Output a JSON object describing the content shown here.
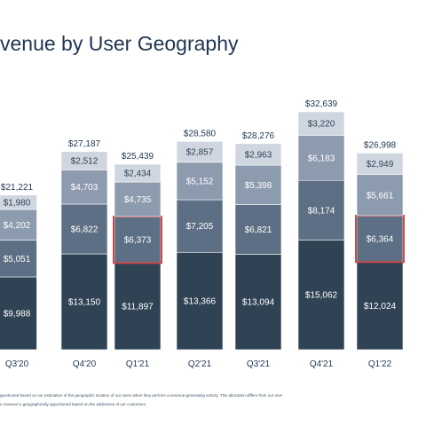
{
  "page": {
    "title": "venue by User Geography",
    "footnotes": [
      "pportioned based on our estimation of the geographic location of our users when they perform a revenue-generating activity. This allocation differs from our reve",
      "e revenue is geographically apportioned based on the addresses of our customers."
    ]
  },
  "colors": {
    "segment_1": "#2f4354",
    "segment_2": "#5d6f84",
    "segment_3": "#8d9bae",
    "segment_4": "#cfd6e0",
    "highlight": "#c94a4a",
    "total_label": "#1f3552",
    "axis_label": "#1f3552"
  },
  "chart_data": {
    "type": "bar",
    "stacked": true,
    "categories": [
      "Q3'20",
      "Q4'20",
      "Q1'21",
      "Q2'21",
      "Q3'21",
      "Q4'21",
      "Q1'22"
    ],
    "series": [
      {
        "values": [
          9988,
          13150,
          11897,
          13366,
          13094,
          15062,
          12024
        ],
        "labels": [
          "$9,988",
          "$13,150",
          "$11,897",
          "$13,366",
          "$13,094",
          "$15,062",
          "$12,024"
        ]
      },
      {
        "values": [
          5051,
          6822,
          6373,
          7205,
          6821,
          8174,
          6364
        ],
        "labels": [
          "$5,051",
          "$6,822",
          "$6,373",
          "$7,205",
          "$6,821",
          "$8,174",
          "$6,364"
        ]
      },
      {
        "values": [
          4202,
          4703,
          4735,
          5152,
          5398,
          6183,
          5661
        ],
        "labels": [
          "$4,202",
          "$4,703",
          "$4,735",
          "$5,152",
          "$5,398",
          "$6,183",
          "$5,661"
        ]
      },
      {
        "values": [
          1980,
          2512,
          2434,
          2857,
          2963,
          3220,
          2949
        ],
        "labels": [
          "$1,980",
          "$2,512",
          "$2,434",
          "$2,857",
          "$2,963",
          "$3,220",
          "$2,949"
        ]
      }
    ],
    "totals": [
      21221,
      27187,
      25439,
      28580,
      28276,
      32639,
      26998
    ],
    "total_labels": [
      "$21,221",
      "$27,187",
      "$25,439",
      "$28,580",
      "$28,276",
      "$32,639",
      "$26,998"
    ],
    "highlighted": [
      {
        "category": "Q1'21",
        "series_index": 1
      },
      {
        "category": "Q1'22",
        "series_index": 1
      }
    ],
    "ylim": [
      0,
      32639
    ],
    "grid": false,
    "legend": "none"
  }
}
